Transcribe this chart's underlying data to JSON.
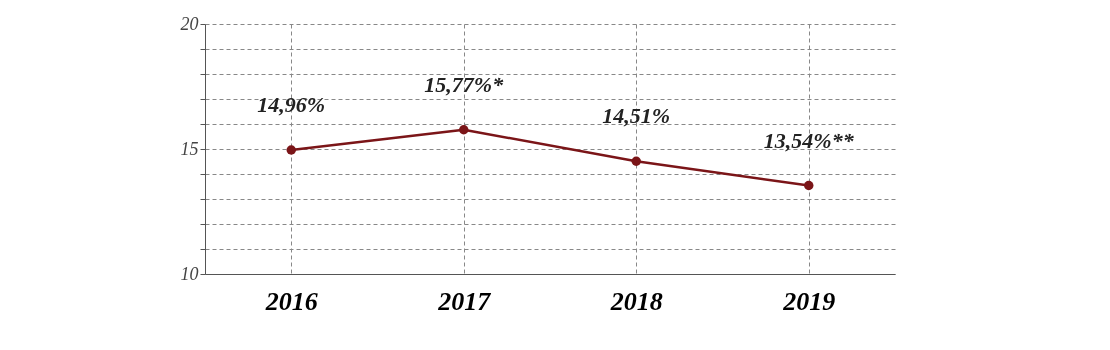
{
  "chart_data": {
    "type": "line",
    "categories": [
      "2016",
      "2017",
      "2018",
      "2019"
    ],
    "series": [
      {
        "color": "#7b1518",
        "values": [
          14.96,
          15.77,
          14.51,
          13.54
        ],
        "value_labels": [
          "14,96%",
          "15,77%*",
          "14,51%",
          "13,54%**"
        ]
      }
    ],
    "ylim": [
      10,
      20
    ],
    "yticks": [
      10,
      {
        "value": 11,
        "label": null
      },
      {
        "value": 12,
        "label": null
      },
      {
        "value": 13,
        "label": null
      },
      {
        "value": 14,
        "label": null
      },
      15,
      {
        "value": 16,
        "label": null
      },
      {
        "value": 17,
        "label": null
      },
      {
        "value": 18,
        "label": null
      },
      {
        "value": 19,
        "label": null
      },
      20
    ],
    "grid": true,
    "marker": "circle",
    "line_style": "solid"
  }
}
